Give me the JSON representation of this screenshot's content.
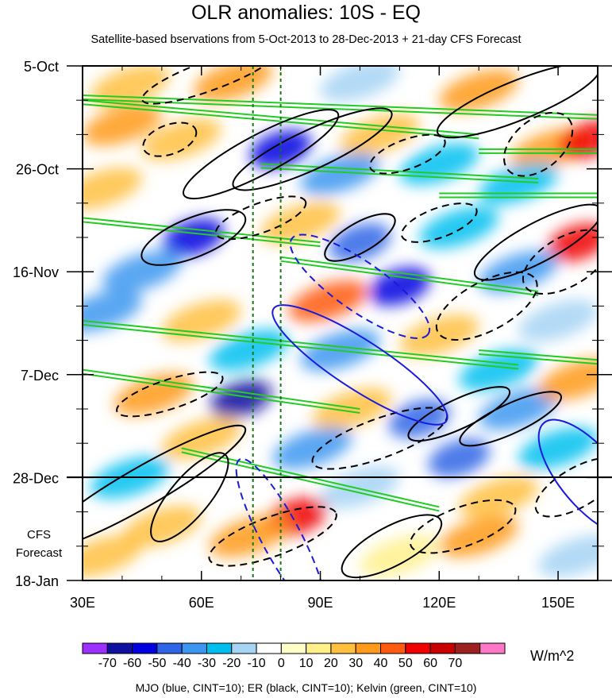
{
  "chart_data": {
    "type": "heatmap",
    "title": "OLR anomalies: 10S - EQ",
    "subtitle": "Satellite-based bservations from 5-Oct-2013 to 28-Dec-2013 + 21-day CFS Forecast",
    "x_axis": {
      "range": [
        30,
        160
      ],
      "ticks": [
        30,
        60,
        90,
        120,
        150
      ],
      "tick_labels": [
        "30E",
        "60E",
        "90E",
        "120E",
        "150E"
      ]
    },
    "y_axis": {
      "range_days": [
        0,
        105
      ],
      "ticks_days": [
        0,
        21,
        42,
        63,
        84,
        105
      ],
      "tick_labels": [
        "5-Oct",
        "26-Oct",
        "16-Nov",
        "7-Dec",
        "28-Dec",
        "18-Jan"
      ]
    },
    "forecast_start_day": 84,
    "forecast_label": [
      "CFS",
      "Forecast"
    ],
    "reference_longitudes": [
      73,
      80
    ],
    "colorbar": {
      "levels": [
        -70,
        -60,
        -50,
        -40,
        -30,
        -20,
        -10,
        0,
        10,
        20,
        30,
        40,
        50,
        60,
        70
      ],
      "labels": [
        "-70",
        "-60",
        "-50",
        "-40",
        "-30",
        "-20",
        "-10",
        "0",
        "10",
        "20",
        "30",
        "40",
        "50",
        "60",
        "70"
      ],
      "colors": [
        "#9b30ff",
        "#1010a0",
        "#0000e0",
        "#2e64e6",
        "#3c96f0",
        "#00bff0",
        "#a6d4f5",
        "#ffffff",
        "#ffffc8",
        "#fff08c",
        "#ffc040",
        "#ff9a1a",
        "#ff5a10",
        "#f00000",
        "#c80000",
        "#9c2020",
        "#ff78c8"
      ],
      "units": "W/m^2"
    },
    "anomaly_blobs": [
      {
        "lon": 42,
        "day": 4,
        "value": 20
      },
      {
        "lon": 68,
        "day": 3,
        "value": 30
      },
      {
        "lon": 100,
        "day": 3,
        "value": -20
      },
      {
        "lon": 130,
        "day": 5,
        "value": 30
      },
      {
        "lon": 40,
        "day": 12,
        "value": 30
      },
      {
        "lon": 55,
        "day": 15,
        "value": 20
      },
      {
        "lon": 80,
        "day": 17,
        "value": -60
      },
      {
        "lon": 105,
        "day": 14,
        "value": 20
      },
      {
        "lon": 120,
        "day": 20,
        "value": -30
      },
      {
        "lon": 148,
        "day": 17,
        "value": 30
      },
      {
        "lon": 158,
        "day": 15,
        "value": 50
      },
      {
        "lon": 35,
        "day": 25,
        "value": 20
      },
      {
        "lon": 95,
        "day": 22,
        "value": -40
      },
      {
        "lon": 140,
        "day": 24,
        "value": -30
      },
      {
        "lon": 58,
        "day": 35,
        "value": -60
      },
      {
        "lon": 85,
        "day": 32,
        "value": 20
      },
      {
        "lon": 100,
        "day": 36,
        "value": -50
      },
      {
        "lon": 125,
        "day": 33,
        "value": -30
      },
      {
        "lon": 155,
        "day": 36,
        "value": 50
      },
      {
        "lon": 45,
        "day": 42,
        "value": -40
      },
      {
        "lon": 110,
        "day": 45,
        "value": -60
      },
      {
        "lon": 140,
        "day": 42,
        "value": -40
      },
      {
        "lon": 92,
        "day": 48,
        "value": 40
      },
      {
        "lon": 60,
        "day": 52,
        "value": 20
      },
      {
        "lon": 35,
        "day": 50,
        "value": -40
      },
      {
        "lon": 120,
        "day": 55,
        "value": 20
      },
      {
        "lon": 150,
        "day": 52,
        "value": -20
      },
      {
        "lon": 72,
        "day": 58,
        "value": -30
      },
      {
        "lon": 95,
        "day": 58,
        "value": -40
      },
      {
        "lon": 135,
        "day": 62,
        "value": -30
      },
      {
        "lon": 48,
        "day": 67,
        "value": 30
      },
      {
        "lon": 70,
        "day": 68,
        "value": -70
      },
      {
        "lon": 98,
        "day": 70,
        "value": 20
      },
      {
        "lon": 115,
        "day": 72,
        "value": -50
      },
      {
        "lon": 140,
        "day": 70,
        "value": -40
      },
      {
        "lon": 155,
        "day": 64,
        "value": 30
      },
      {
        "lon": 60,
        "day": 76,
        "value": 20
      },
      {
        "lon": 88,
        "day": 78,
        "value": -40
      },
      {
        "lon": 125,
        "day": 80,
        "value": -50
      },
      {
        "lon": 150,
        "day": 78,
        "value": -30
      },
      {
        "lon": 42,
        "day": 84,
        "value": -30
      },
      {
        "lon": 100,
        "day": 86,
        "value": -20
      },
      {
        "lon": 135,
        "day": 88,
        "value": 20
      },
      {
        "lon": 84,
        "day": 92,
        "value": 50
      },
      {
        "lon": 72,
        "day": 96,
        "value": 30
      },
      {
        "lon": 50,
        "day": 94,
        "value": 20
      },
      {
        "lon": 130,
        "day": 96,
        "value": 30
      },
      {
        "lon": 110,
        "day": 100,
        "value": 10
      },
      {
        "lon": 155,
        "day": 100,
        "value": -20
      },
      {
        "lon": 35,
        "day": 100,
        "value": 20
      }
    ],
    "contours": [
      {
        "type": "MJO",
        "sign": "neg",
        "lon": 100,
        "day": 61,
        "dlon": 26,
        "dday": 5,
        "angle": 33
      },
      {
        "type": "MJO",
        "sign": "pos",
        "lon": 100,
        "day": 45,
        "dlon": 21,
        "dday": 5,
        "angle": 35
      },
      {
        "type": "MJO",
        "sign": "pos",
        "lon": 80,
        "day": 96,
        "dlon": 22,
        "dday": 4,
        "angle": 62
      },
      {
        "type": "MJO",
        "sign": "neg",
        "lon": 158,
        "day": 84,
        "dlon": 18,
        "dday": 6,
        "angle": 50
      },
      {
        "type": "ER",
        "sign": "neg",
        "lon": 75,
        "day": 18,
        "dlon": 22,
        "dday": 4,
        "angle": -28
      },
      {
        "type": "ER",
        "sign": "neg",
        "lon": 88,
        "day": 17,
        "dlon": 22,
        "dday": 4,
        "angle": -25
      },
      {
        "type": "ER",
        "sign": "neg",
        "lon": 140,
        "day": 7,
        "dlon": 22,
        "dday": 4,
        "angle": -22
      },
      {
        "type": "ER",
        "sign": "neg",
        "lon": 58,
        "day": 35,
        "dlon": 14,
        "dday": 4,
        "angle": -22
      },
      {
        "type": "ER",
        "sign": "neg",
        "lon": 100,
        "day": 35,
        "dlon": 10,
        "dday": 3,
        "angle": -30
      },
      {
        "type": "ER",
        "sign": "neg",
        "lon": 145,
        "day": 36,
        "dlon": 18,
        "dday": 4,
        "angle": -28
      },
      {
        "type": "ER",
        "sign": "neg",
        "lon": 125,
        "day": 71,
        "dlon": 14,
        "dday": 3,
        "angle": -25
      },
      {
        "type": "ER",
        "sign": "neg",
        "lon": 138,
        "day": 72,
        "dlon": 14,
        "dday": 3,
        "angle": -25
      },
      {
        "type": "ER",
        "sign": "neg",
        "lon": 45,
        "day": 86,
        "dlon": 30,
        "dday": 4,
        "angle": -30
      },
      {
        "type": "ER",
        "sign": "neg",
        "lon": 108,
        "day": 98,
        "dlon": 14,
        "dday": 4,
        "angle": -28
      },
      {
        "type": "ER",
        "sign": "neg",
        "lon": 57,
        "day": 88,
        "dlon": 14,
        "dday": 4,
        "angle": -50
      },
      {
        "type": "ER",
        "sign": "pos",
        "lon": 62,
        "day": 2,
        "dlon": 18,
        "dday": 3,
        "angle": -20
      },
      {
        "type": "ER",
        "sign": "pos",
        "lon": 52,
        "day": 15,
        "dlon": 7,
        "dday": 3,
        "angle": -20
      },
      {
        "type": "ER",
        "sign": "pos",
        "lon": 112,
        "day": 18,
        "dlon": 10,
        "dday": 3,
        "angle": -20
      },
      {
        "type": "ER",
        "sign": "pos",
        "lon": 145,
        "day": 16,
        "dlon": 10,
        "dday": 5,
        "angle": -40
      },
      {
        "type": "ER",
        "sign": "pos",
        "lon": 75,
        "day": 31,
        "dlon": 12,
        "dday": 3,
        "angle": -20
      },
      {
        "type": "ER",
        "sign": "pos",
        "lon": 120,
        "day": 32,
        "dlon": 10,
        "dday": 3,
        "angle": -20
      },
      {
        "type": "ER",
        "sign": "pos",
        "lon": 152,
        "day": 40,
        "dlon": 12,
        "dday": 5,
        "angle": -30
      },
      {
        "type": "ER",
        "sign": "pos",
        "lon": 132,
        "day": 49,
        "dlon": 14,
        "dday": 5,
        "angle": -28
      },
      {
        "type": "ER",
        "sign": "pos",
        "lon": 52,
        "day": 67,
        "dlon": 14,
        "dday": 3,
        "angle": -18
      },
      {
        "type": "ER",
        "sign": "pos",
        "lon": 105,
        "day": 76,
        "dlon": 18,
        "dday": 4,
        "angle": -20
      },
      {
        "type": "ER",
        "sign": "pos",
        "lon": 78,
        "day": 96,
        "dlon": 17,
        "dday": 4,
        "angle": -20
      },
      {
        "type": "ER",
        "sign": "pos",
        "lon": 126,
        "day": 94,
        "dlon": 14,
        "dday": 4,
        "angle": -20
      },
      {
        "type": "ER",
        "sign": "pos",
        "lon": 155,
        "day": 86,
        "dlon": 12,
        "dday": 4,
        "angle": -30
      }
    ],
    "kelvin_bands": [
      {
        "x1": 30,
        "d1": 6,
        "x2": 160,
        "d2": 10
      },
      {
        "x1": 30,
        "d1": 7,
        "x2": 130,
        "d2": 14
      },
      {
        "x1": 75,
        "d1": 20,
        "x2": 145,
        "d2": 23
      },
      {
        "x1": 30,
        "d1": 31,
        "x2": 90,
        "d2": 36
      },
      {
        "x1": 80,
        "d1": 39,
        "x2": 145,
        "d2": 46
      },
      {
        "x1": 30,
        "d1": 52,
        "x2": 140,
        "d2": 61
      },
      {
        "x1": 30,
        "d1": 62,
        "x2": 100,
        "d2": 70
      },
      {
        "x1": 55,
        "d1": 78,
        "x2": 120,
        "d2": 90
      },
      {
        "x1": 130,
        "d1": 58,
        "x2": 160,
        "d2": 60
      },
      {
        "x1": 120,
        "d1": 26,
        "x2": 160,
        "d2": 26
      },
      {
        "x1": 130,
        "d1": 17,
        "x2": 160,
        "d2": 17
      }
    ],
    "legend_note": "MJO (blue, CINT=10); ER (black, CINT=10); Kelvin (green, CINT=10)"
  }
}
